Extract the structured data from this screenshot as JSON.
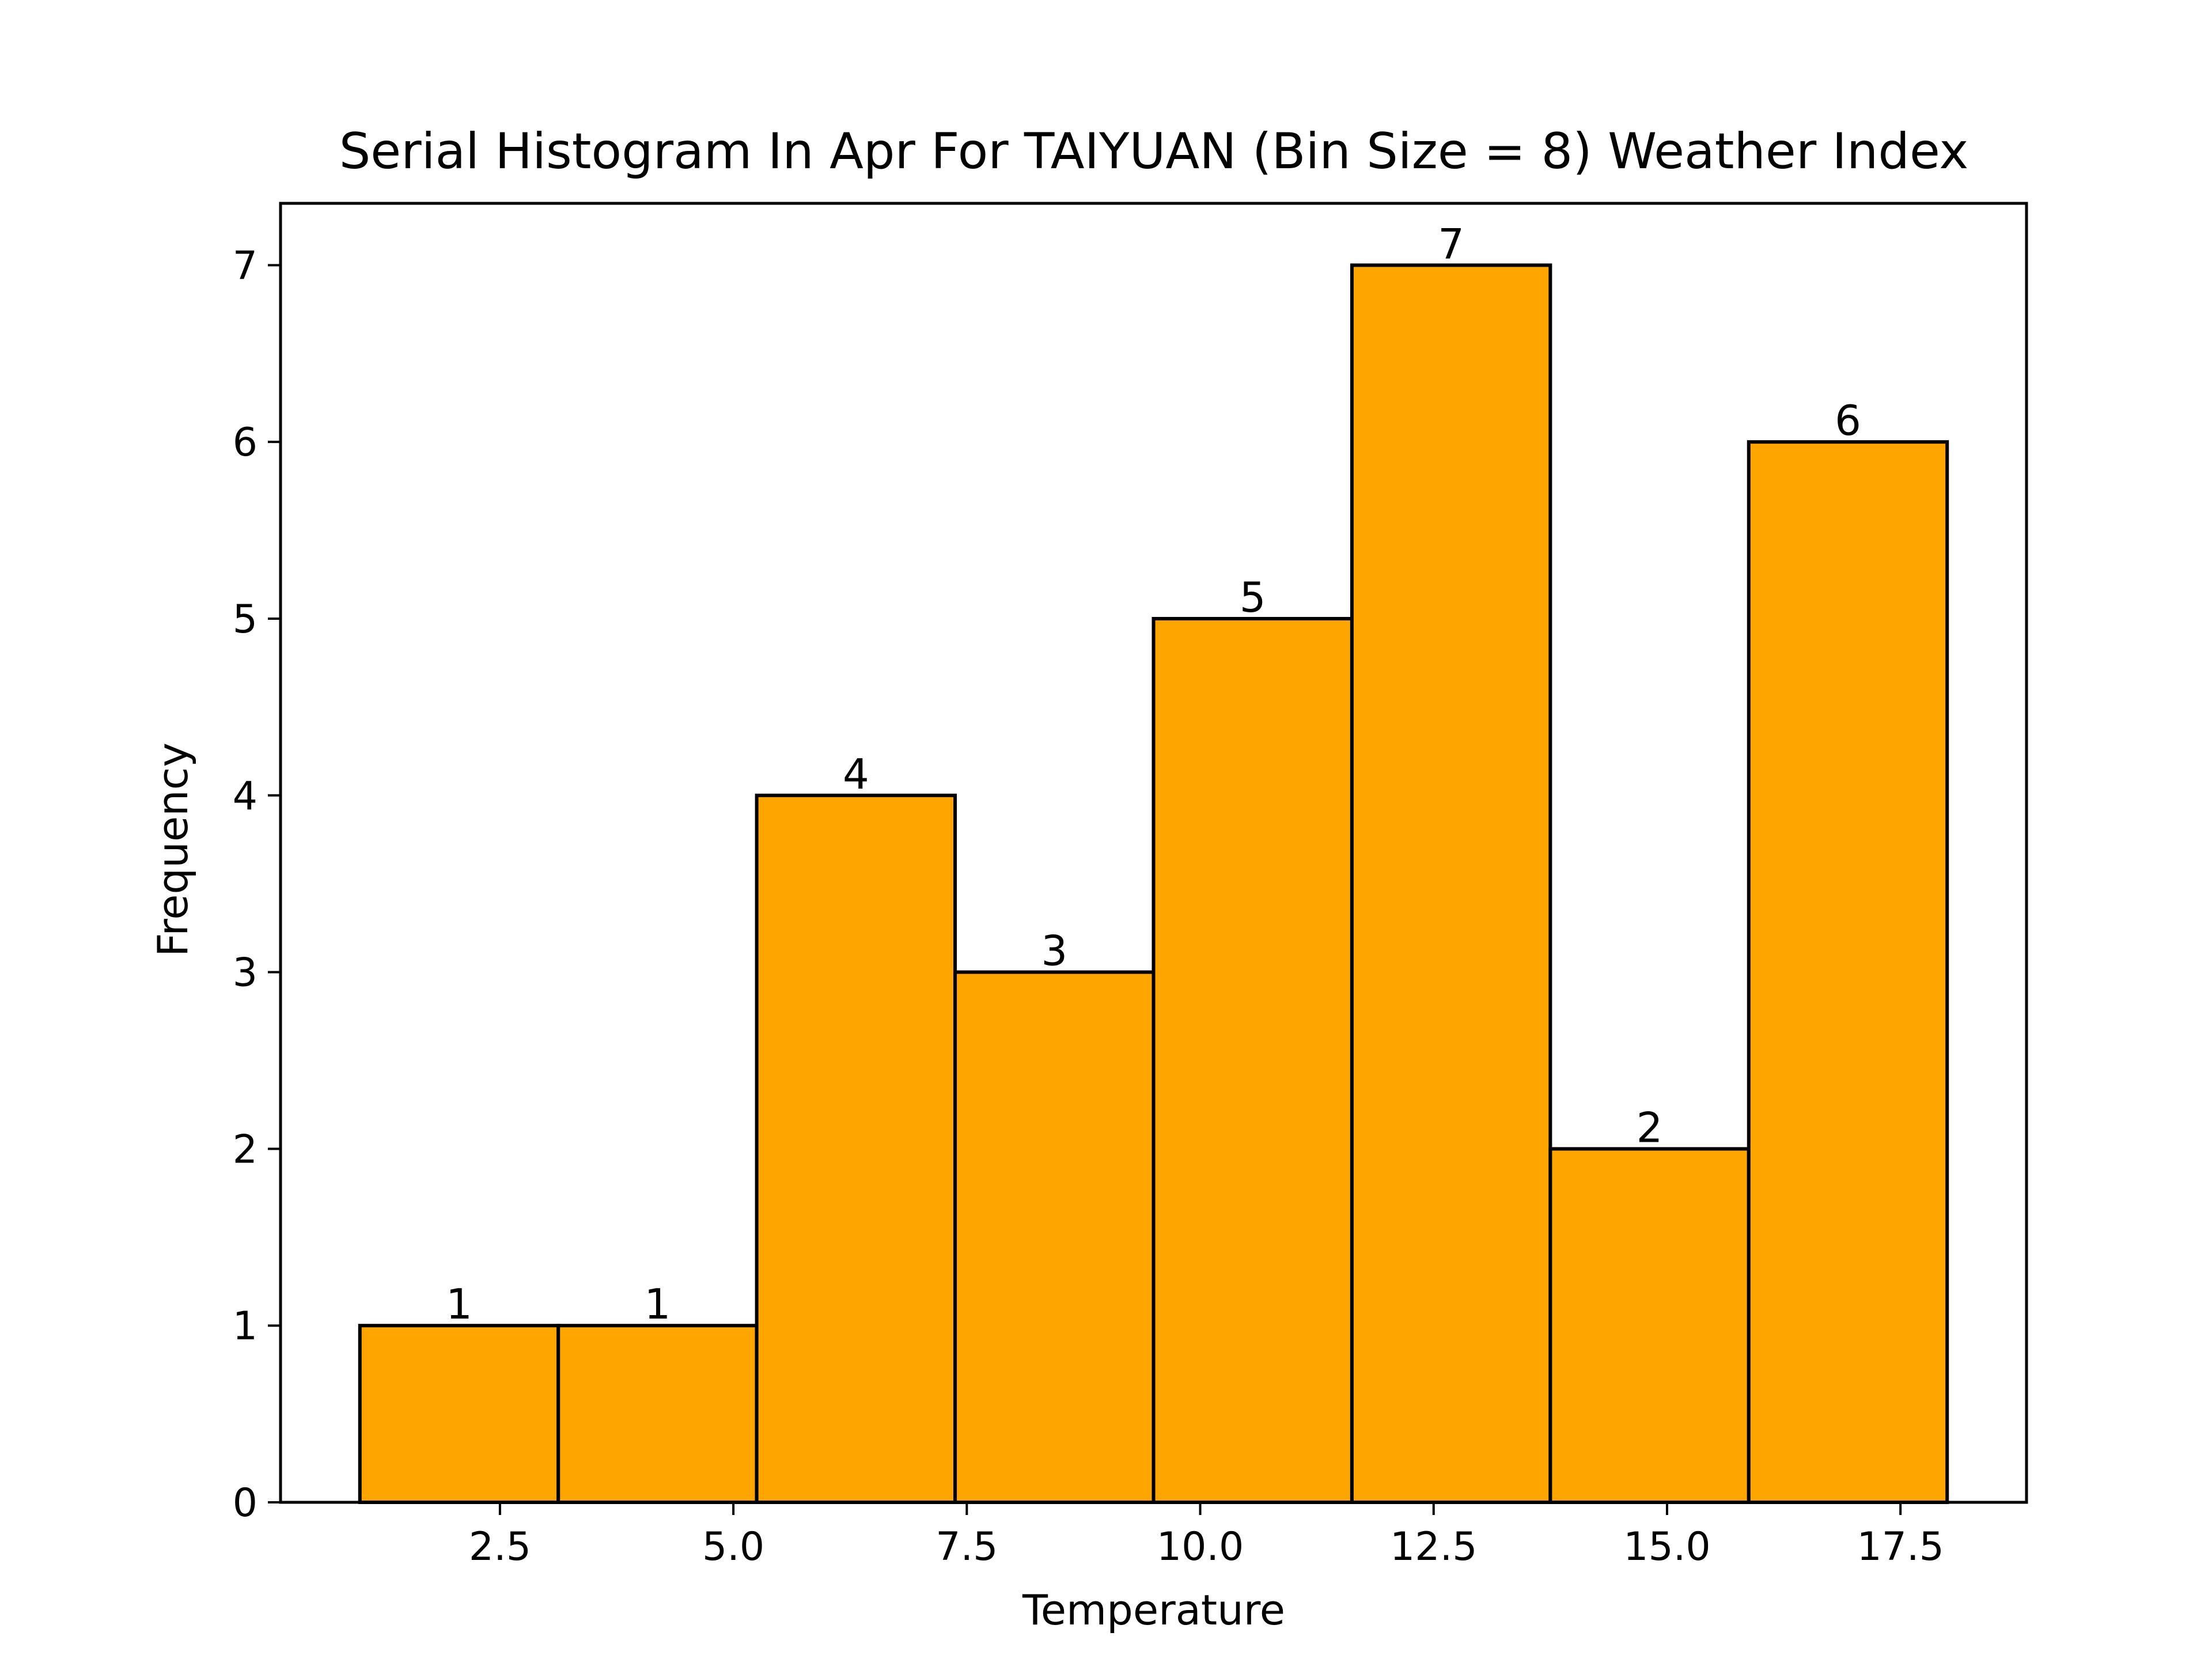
{
  "chart_data": {
    "type": "bar",
    "title": "Serial Histogram In Apr For TAIYUAN (Bin Size = 8) Weather Index",
    "xlabel": "Temperature",
    "ylabel": "Frequency",
    "bins": [
      {
        "start": 1.0,
        "end": 3.125,
        "value": 1
      },
      {
        "start": 3.125,
        "end": 5.25,
        "value": 1
      },
      {
        "start": 5.25,
        "end": 7.375,
        "value": 4
      },
      {
        "start": 7.375,
        "end": 9.5,
        "value": 3
      },
      {
        "start": 9.5,
        "end": 11.625,
        "value": 5
      },
      {
        "start": 11.625,
        "end": 13.75,
        "value": 7
      },
      {
        "start": 13.75,
        "end": 15.875,
        "value": 2
      },
      {
        "start": 15.875,
        "end": 18.0,
        "value": 6
      }
    ],
    "x_ticks": [
      "2.5",
      "5.0",
      "7.5",
      "10.0",
      "12.5",
      "15.0",
      "17.5"
    ],
    "x_tick_values": [
      2.5,
      5.0,
      7.5,
      10.0,
      12.5,
      15.0,
      17.5
    ],
    "y_ticks": [
      "0",
      "1",
      "2",
      "3",
      "4",
      "5",
      "6",
      "7"
    ],
    "y_tick_values": [
      0,
      1,
      2,
      3,
      4,
      5,
      6,
      7
    ],
    "xlim": [
      0.15,
      18.85
    ],
    "ylim": [
      0,
      7.35
    ],
    "bar_color": "#FFA500",
    "edge_color": "#000000",
    "grid": false
  }
}
